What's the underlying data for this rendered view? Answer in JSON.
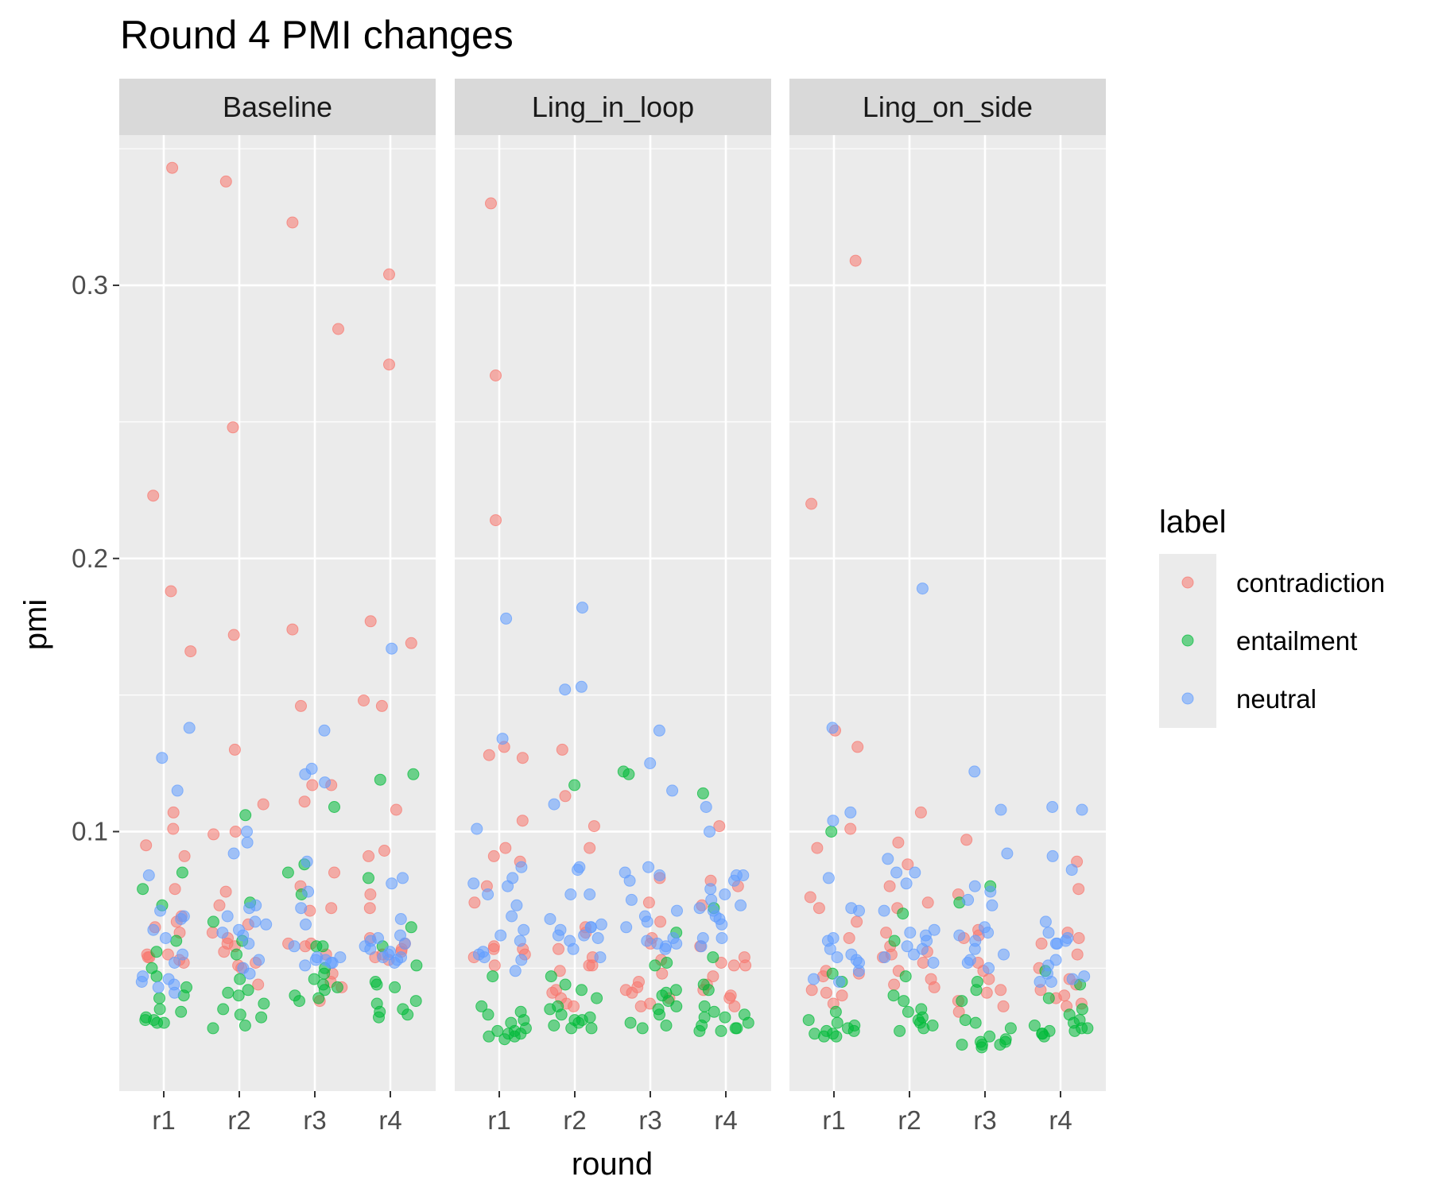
{
  "chart_data": {
    "type": "scatter",
    "title": "Round 4 PMI changes",
    "xlabel": "round",
    "ylabel": "pmi",
    "x_categories": [
      "r1",
      "r2",
      "r3",
      "r4"
    ],
    "ylim": [
      0.005,
      0.355
    ],
    "y_ticks": [
      0.1,
      0.2,
      0.3
    ],
    "y_tick_labels": [
      "0.1",
      "0.2",
      "0.3"
    ],
    "grid": true,
    "jitter": true,
    "legend": {
      "title": "label",
      "position": "right",
      "entries": [
        "contradiction",
        "entailment",
        "neutral"
      ]
    },
    "colors": {
      "contradiction": "#F8766D",
      "entailment": "#00BA38",
      "neutral": "#619CFF",
      "panel_background": "#EBEBEB",
      "strip_background": "#D9D9D9",
      "grid": "#FFFFFF"
    },
    "panels": [
      {
        "name": "Baseline",
        "rounds": {
          "r1": {
            "contradiction": [
              0.343,
              0.223,
              0.188,
              0.166,
              0.107,
              0.101,
              0.095,
              0.091,
              0.079,
              0.069,
              0.067,
              0.065,
              0.063,
              0.055,
              0.055,
              0.054,
              0.054,
              0.053,
              0.052
            ],
            "entailment": [
              0.085,
              0.079,
              0.073,
              0.06,
              0.056,
              0.05,
              0.047,
              0.043,
              0.04,
              0.039,
              0.035,
              0.034,
              0.032,
              0.031,
              0.031,
              0.03,
              0.03
            ],
            "neutral": [
              0.138,
              0.127,
              0.115,
              0.084,
              0.071,
              0.069,
              0.068,
              0.064,
              0.061,
              0.055,
              0.052,
              0.047,
              0.046,
              0.045,
              0.044,
              0.043,
              0.041
            ]
          },
          "r2": {
            "contradiction": [
              0.338,
              0.248,
              0.172,
              0.13,
              0.11,
              0.1,
              0.099,
              0.078,
              0.073,
              0.066,
              0.063,
              0.061,
              0.059,
              0.058,
              0.056,
              0.052,
              0.051,
              0.05,
              0.044
            ],
            "entailment": [
              0.106,
              0.074,
              0.067,
              0.06,
              0.055,
              0.046,
              0.042,
              0.041,
              0.04,
              0.037,
              0.035,
              0.033,
              0.032,
              0.029,
              0.028
            ],
            "neutral": [
              0.1,
              0.096,
              0.092,
              0.073,
              0.072,
              0.069,
              0.067,
              0.066,
              0.064,
              0.063,
              0.062,
              0.059,
              0.053,
              0.05,
              0.048
            ]
          },
          "r3": {
            "contradiction": [
              0.323,
              0.284,
              0.174,
              0.146,
              0.117,
              0.117,
              0.111,
              0.085,
              0.08,
              0.072,
              0.071,
              0.059,
              0.059,
              0.058,
              0.055,
              0.048,
              0.045,
              0.043,
              0.038
            ],
            "entailment": [
              0.109,
              0.088,
              0.085,
              0.077,
              0.058,
              0.058,
              0.05,
              0.048,
              0.046,
              0.044,
              0.043,
              0.042,
              0.04,
              0.039,
              0.038
            ],
            "neutral": [
              0.137,
              0.123,
              0.121,
              0.118,
              0.089,
              0.078,
              0.072,
              0.066,
              0.058,
              0.054,
              0.054,
              0.053,
              0.053,
              0.052,
              0.052,
              0.051
            ]
          },
          "r4": {
            "contradiction": [
              0.304,
              0.271,
              0.177,
              0.169,
              0.146,
              0.148,
              0.108,
              0.093,
              0.091,
              0.077,
              0.072,
              0.061,
              0.059,
              0.057,
              0.056,
              0.055,
              0.054,
              0.053
            ],
            "entailment": [
              0.121,
              0.119,
              0.083,
              0.065,
              0.058,
              0.051,
              0.045,
              0.044,
              0.043,
              0.038,
              0.037,
              0.035,
              0.034,
              0.033,
              0.032
            ],
            "neutral": [
              0.167,
              0.083,
              0.081,
              0.068,
              0.062,
              0.061,
              0.06,
              0.059,
              0.058,
              0.057,
              0.056,
              0.055,
              0.054,
              0.054,
              0.053,
              0.052
            ]
          }
        }
      },
      {
        "name": "Ling_in_loop",
        "rounds": {
          "r1": {
            "contradiction": [
              0.33,
              0.267,
              0.214,
              0.131,
              0.128,
              0.127,
              0.104,
              0.094,
              0.091,
              0.089,
              0.08,
              0.074,
              0.058,
              0.057,
              0.057,
              0.055,
              0.054,
              0.051
            ],
            "entailment": [
              0.047,
              0.036,
              0.034,
              0.033,
              0.031,
              0.03,
              0.028,
              0.027,
              0.027,
              0.026,
              0.026,
              0.025,
              0.025,
              0.024
            ],
            "neutral": [
              0.178,
              0.134,
              0.101,
              0.087,
              0.083,
              0.081,
              0.08,
              0.077,
              0.073,
              0.069,
              0.064,
              0.062,
              0.06,
              0.056,
              0.055,
              0.054,
              0.053,
              0.049
            ]
          },
          "r2": {
            "contradiction": [
              0.13,
              0.113,
              0.102,
              0.094,
              0.065,
              0.063,
              0.057,
              0.054,
              0.051,
              0.051,
              0.049,
              0.042,
              0.041,
              0.039,
              0.037,
              0.036
            ],
            "entailment": [
              0.117,
              0.047,
              0.044,
              0.042,
              0.039,
              0.036,
              0.035,
              0.033,
              0.032,
              0.031,
              0.031,
              0.03,
              0.029,
              0.028,
              0.028
            ],
            "neutral": [
              0.182,
              0.153,
              0.152,
              0.11,
              0.087,
              0.086,
              0.077,
              0.077,
              0.068,
              0.066,
              0.065,
              0.065,
              0.064,
              0.062,
              0.062,
              0.061,
              0.06,
              0.057,
              0.054
            ]
          },
          "r3": {
            "contradiction": [
              0.083,
              0.074,
              0.067,
              0.061,
              0.059,
              0.053,
              0.048,
              0.045,
              0.043,
              0.042,
              0.041,
              0.039,
              0.037,
              0.036
            ],
            "entailment": [
              0.122,
              0.121,
              0.063,
              0.052,
              0.051,
              0.042,
              0.041,
              0.04,
              0.038,
              0.036,
              0.035,
              0.033,
              0.03,
              0.029,
              0.028
            ],
            "neutral": [
              0.137,
              0.125,
              0.115,
              0.087,
              0.085,
              0.084,
              0.082,
              0.075,
              0.071,
              0.069,
              0.067,
              0.065,
              0.061,
              0.06,
              0.059,
              0.059,
              0.058,
              0.057
            ]
          },
          "r4": {
            "contradiction": [
              0.102,
              0.082,
              0.08,
              0.073,
              0.058,
              0.054,
              0.052,
              0.051,
              0.051,
              0.047,
              0.044,
              0.042,
              0.04,
              0.039,
              0.036
            ],
            "entailment": [
              0.114,
              0.072,
              0.054,
              0.044,
              0.042,
              0.036,
              0.034,
              0.033,
              0.032,
              0.032,
              0.03,
              0.029,
              0.028,
              0.028,
              0.027,
              0.027
            ],
            "neutral": [
              0.109,
              0.1,
              0.084,
              0.084,
              0.082,
              0.079,
              0.077,
              0.075,
              0.073,
              0.072,
              0.071,
              0.069,
              0.068,
              0.066,
              0.061,
              0.061,
              0.058
            ]
          }
        }
      },
      {
        "name": "Ling_on_side",
        "rounds": {
          "r1": {
            "contradiction": [
              0.309,
              0.22,
              0.137,
              0.131,
              0.101,
              0.094,
              0.076,
              0.072,
              0.067,
              0.061,
              0.049,
              0.048,
              0.047,
              0.042,
              0.041,
              0.04,
              0.037
            ],
            "entailment": [
              0.1,
              0.048,
              0.045,
              0.034,
              0.031,
              0.03,
              0.029,
              0.028,
              0.027,
              0.027,
              0.026,
              0.026,
              0.025,
              0.025
            ],
            "neutral": [
              0.138,
              0.107,
              0.104,
              0.083,
              0.072,
              0.071,
              0.061,
              0.06,
              0.057,
              0.055,
              0.054,
              0.053,
              0.052,
              0.049,
              0.046,
              0.045
            ]
          },
          "r2": {
            "contradiction": [
              0.107,
              0.096,
              0.088,
              0.08,
              0.074,
              0.072,
              0.063,
              0.058,
              0.056,
              0.055,
              0.054,
              0.052,
              0.049,
              0.046,
              0.044,
              0.043
            ],
            "entailment": [
              0.07,
              0.06,
              0.047,
              0.04,
              0.038,
              0.035,
              0.034,
              0.032,
              0.031,
              0.03,
              0.029,
              0.028,
              0.027
            ],
            "neutral": [
              0.189,
              0.09,
              0.085,
              0.085,
              0.081,
              0.071,
              0.064,
              0.063,
              0.062,
              0.06,
              0.058,
              0.057,
              0.055,
              0.054,
              0.052
            ]
          },
          "r3": {
            "contradiction": [
              0.097,
              0.077,
              0.064,
              0.062,
              0.061,
              0.052,
              0.049,
              0.046,
              0.042,
              0.041,
              0.038,
              0.036,
              0.034
            ],
            "entailment": [
              0.08,
              0.074,
              0.045,
              0.042,
              0.038,
              0.031,
              0.03,
              0.028,
              0.025,
              0.024,
              0.023,
              0.023,
              0.022,
              0.022,
              0.022,
              0.021
            ],
            "neutral": [
              0.122,
              0.108,
              0.092,
              0.08,
              0.078,
              0.075,
              0.073,
              0.065,
              0.063,
              0.062,
              0.06,
              0.057,
              0.055,
              0.053,
              0.052,
              0.05
            ]
          },
          "r4": {
            "contradiction": [
              0.089,
              0.079,
              0.063,
              0.061,
              0.059,
              0.055,
              0.05,
              0.046,
              0.044,
              0.042,
              0.04,
              0.039,
              0.037,
              0.036
            ],
            "entailment": [
              0.049,
              0.044,
              0.039,
              0.035,
              0.033,
              0.031,
              0.03,
              0.029,
              0.028,
              0.028,
              0.027,
              0.027,
              0.026,
              0.026,
              0.025
            ],
            "neutral": [
              0.109,
              0.108,
              0.091,
              0.086,
              0.067,
              0.063,
              0.061,
              0.06,
              0.059,
              0.059,
              0.053,
              0.051,
              0.048,
              0.047,
              0.046,
              0.045,
              0.045
            ]
          }
        }
      }
    ]
  }
}
